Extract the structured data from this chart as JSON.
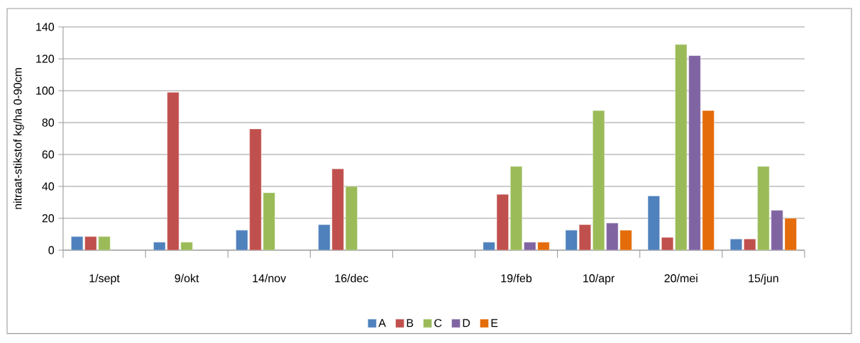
{
  "chart_data": {
    "type": "bar",
    "ylabel": "nitraat-stikstof kg/ha 0-90cm",
    "categories": [
      "1/sept",
      "9/okt",
      "14/nov",
      "16/dec",
      null,
      "19/feb",
      "10/apr",
      "20/mei",
      "15/jun"
    ],
    "series": [
      {
        "name": "A",
        "color": "#4f81bd",
        "values": [
          8.5,
          5,
          12.5,
          16,
          null,
          5,
          12.5,
          34,
          7
        ]
      },
      {
        "name": "B",
        "color": "#c0504d",
        "values": [
          8.5,
          99,
          76,
          51,
          null,
          35,
          16,
          8,
          7
        ]
      },
      {
        "name": "C",
        "color": "#9bbb59",
        "values": [
          8.5,
          5,
          36,
          40,
          null,
          52.5,
          87.5,
          129,
          52.5
        ]
      },
      {
        "name": "D",
        "color": "#8064a2",
        "values": [
          null,
          null,
          null,
          null,
          null,
          5,
          17,
          122,
          25
        ]
      },
      {
        "name": "E",
        "color": "#e46c0a",
        "values": [
          null,
          null,
          null,
          null,
          null,
          5,
          12.5,
          87.5,
          20
        ]
      }
    ],
    "ylim": [
      0,
      140
    ],
    "yticks": [
      0,
      20,
      40,
      60,
      80,
      100,
      120,
      140
    ],
    "grid": "y",
    "legend": "bottom"
  }
}
